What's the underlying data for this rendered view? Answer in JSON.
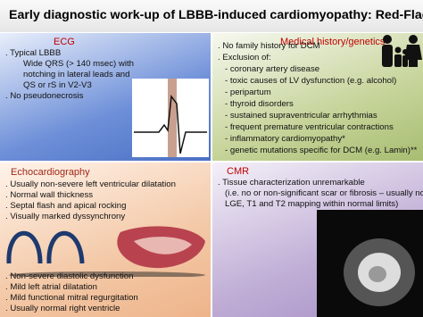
{
  "title": "Early diagnostic work-up of LBBB-induced cardiomyopathy: Red-Flags",
  "panels": [
    {
      "heading": "ECG",
      "items": [
        ". Typical LBBB",
        "Wide QRS (> 140 msec) with",
        "notching in lateral leads and",
        "QS or rS in V2-V3",
        ". No pseudonecrosis"
      ]
    },
    {
      "heading": "Medical history/genetics",
      "items": [
        ". No family history for DCM",
        ". Exclusion of:",
        "- coronary artery disease",
        "- toxic causes of LV dysfunction (e.g. alcohol)",
        "- peripartum",
        "- thyroid disorders",
        "- sustained supraventricular arrhythmias",
        "- frequent premature ventricular contractions",
        "- inflammatory cardiomyopathy*",
        "- genetic mutations specific for DCM (e.g. Lamin)**"
      ]
    },
    {
      "heading": "Echocardiography",
      "items": [
        ". Usually non-severe left ventricular dilatation",
        ". Normal wall thickness",
        ". Septal flash and apical rocking",
        ". Visually marked dyssynchrony",
        ". Non-severe diastolic dysfunction",
        ". Mild left atrial dilatation",
        ". Mild functional mitral regurgitation",
        ". Usually normal right ventricle"
      ]
    },
    {
      "heading": "CMR",
      "items": [
        ". Tissue characterization unremarkable",
        "(i.e. no or non-significant scar or fibrosis – usually no",
        "LGE, T1 and T2 mapping within normal limits)"
      ]
    }
  ]
}
